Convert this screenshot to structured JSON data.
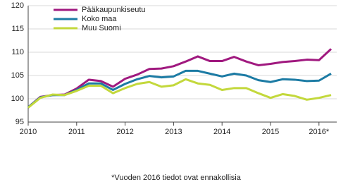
{
  "chart_data": {
    "type": "line",
    "categories": [
      "2010",
      null,
      null,
      null,
      "2011",
      null,
      null,
      null,
      "2012",
      null,
      null,
      null,
      "2013",
      null,
      null,
      null,
      "2014",
      null,
      null,
      null,
      "2015",
      null,
      null,
      null,
      "2016*",
      null
    ],
    "series": [
      {
        "name": "Pääkaupunkiseutu",
        "color": "#a0197f",
        "values": [
          98.2,
          100.4,
          100.8,
          100.9,
          102.2,
          104.1,
          103.8,
          102.6,
          104.3,
          105.2,
          106.4,
          106.5,
          107.0,
          108.0,
          109.1,
          108.1,
          108.1,
          109.0,
          108.0,
          107.2,
          107.5,
          107.9,
          108.1,
          108.4,
          108.3,
          110.7
        ]
      },
      {
        "name": "Koko maa",
        "color": "#1c7ba4",
        "values": [
          98.2,
          100.3,
          100.8,
          100.8,
          101.9,
          103.3,
          103.3,
          101.9,
          103.2,
          104.2,
          104.9,
          104.6,
          104.8,
          106.0,
          106.0,
          105.4,
          104.8,
          105.4,
          105.0,
          104.0,
          103.6,
          104.2,
          104.1,
          103.8,
          103.9,
          105.4
        ]
      },
      {
        "name": "Muu Suomi",
        "color": "#c3d83c",
        "values": [
          98.1,
          100.2,
          100.9,
          100.8,
          101.7,
          102.8,
          102.8,
          101.2,
          102.3,
          103.2,
          103.6,
          102.6,
          102.9,
          104.2,
          103.3,
          103.0,
          101.9,
          102.3,
          102.3,
          101.2,
          100.2,
          101.0,
          100.6,
          99.8,
          100.2,
          100.8
        ]
      }
    ],
    "ylim": [
      95,
      120
    ],
    "yticks": [
      95,
      100,
      105,
      110,
      115,
      120
    ],
    "grid": true,
    "legend": "upper-left",
    "note": "*Vuoden 2016 tiedot ovat ennakollisia"
  }
}
